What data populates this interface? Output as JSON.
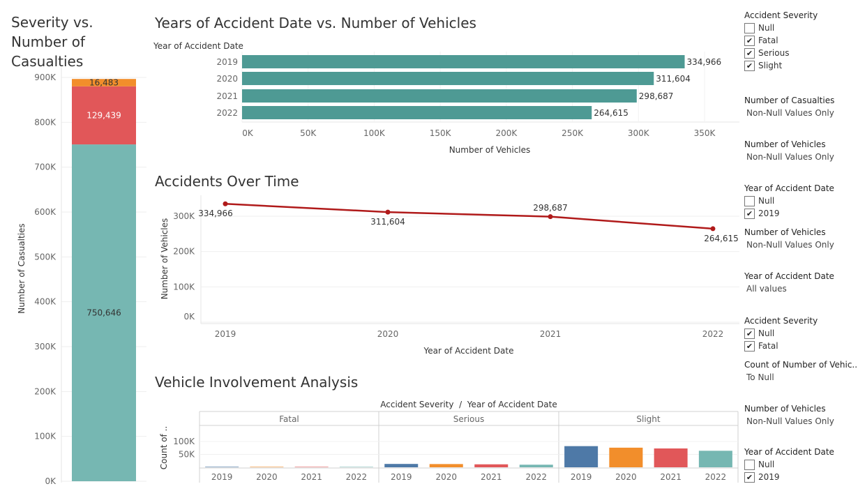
{
  "charts": {
    "severity": {
      "title": "Severity vs. Number of Casualties",
      "ylabel": "Number of Casualties"
    },
    "years": {
      "title": "Years of Accident Date vs. Number of Vehicles",
      "ylabel": "Year of Accident Date",
      "xlabel": "Number of Vehicles"
    },
    "time": {
      "title": "Accidents Over Time",
      "ylabel": "Number of Vehicles",
      "xlabel": "Year of Accident Date"
    },
    "involvement": {
      "title": "Vehicle Involvement Analysis",
      "header": "Accident Severity  /  Year of Accident Date",
      "ylabel": "Count of .."
    }
  },
  "chart_data": [
    {
      "type": "bar",
      "title": "Severity vs. Number of Casualties",
      "ylabel": "Number of Casualties",
      "stacked": true,
      "ylim": [
        0,
        920000
      ],
      "yticks": [
        0,
        100000,
        200000,
        300000,
        400000,
        500000,
        600000,
        700000,
        800000,
        900000
      ],
      "ytick_labels": [
        "0K",
        "100K",
        "200K",
        "300K",
        "400K",
        "500K",
        "600K",
        "700K",
        "800K",
        "900K"
      ],
      "series": [
        {
          "name": "Slight",
          "values": [
            750646
          ],
          "labels": [
            "750,646"
          ],
          "color": "#76b7b2",
          "label_color": "#333333"
        },
        {
          "name": "Serious",
          "values": [
            129439
          ],
          "labels": [
            "129,439"
          ],
          "color": "#e15759",
          "label_color": "#ffffff"
        },
        {
          "name": "Fatal",
          "values": [
            16483
          ],
          "labels": [
            "16,483"
          ],
          "color": "#f28e2b",
          "label_color": "#333333"
        }
      ]
    },
    {
      "type": "bar",
      "orientation": "horizontal",
      "title": "Years of Accident Date vs. Number of Vehicles",
      "xlabel": "Number of Vehicles",
      "ylabel": "Year of Accident Date",
      "categories": [
        "2019",
        "2020",
        "2021",
        "2022"
      ],
      "values": [
        334966,
        311604,
        298687,
        264615
      ],
      "labels": [
        "334,966",
        "311,604",
        "298,687",
        "264,615"
      ],
      "xlim": [
        0,
        375000
      ],
      "xticks": [
        0,
        50000,
        100000,
        150000,
        200000,
        250000,
        300000,
        350000
      ],
      "xtick_labels": [
        "0K",
        "50K",
        "100K",
        "150K",
        "200K",
        "250K",
        "300K",
        "350K"
      ],
      "color": "#4e9a94"
    },
    {
      "type": "line",
      "title": "Accidents Over Time",
      "xlabel": "Year of Accident Date",
      "ylabel": "Number of Vehicles",
      "x": [
        "2019",
        "2020",
        "2021",
        "2022"
      ],
      "values": [
        334966,
        311604,
        298687,
        264615
      ],
      "labels": [
        "334,966",
        "311,604",
        "298,687",
        "264,615"
      ],
      "ylim": [
        0,
        345000
      ],
      "yticks": [
        0,
        100000,
        200000,
        300000
      ],
      "ytick_labels": [
        "0K",
        "100K",
        "200K",
        "300K"
      ],
      "color": "#b01a1a"
    },
    {
      "type": "bar",
      "title": "Vehicle Involvement Analysis",
      "ylabel": "Count of ..",
      "header": "Accident Severity  /  Year of Accident Date",
      "panels": [
        "Fatal",
        "Serious",
        "Slight"
      ],
      "categories": [
        "2019",
        "2020",
        "2021",
        "2022"
      ],
      "values": [
        [
          1800,
          1700,
          1600,
          1500
        ],
        [
          13000,
          12500,
          11500,
          10000
        ],
        [
          82000,
          76000,
          73000,
          64000
        ]
      ],
      "colors": [
        "#4e79a7",
        "#f28e2b",
        "#e15759",
        "#76b7b2"
      ],
      "ylim": [
        0,
        120000
      ],
      "yticks": [
        50000,
        100000
      ],
      "ytick_labels": [
        "50K",
        "100K"
      ]
    }
  ],
  "filters": [
    {
      "title": "Accident Severity",
      "options": [
        {
          "label": "Null",
          "checked": false
        },
        {
          "label": "Fatal",
          "checked": true
        },
        {
          "label": "Serious",
          "checked": true
        },
        {
          "label": "Slight",
          "checked": true
        }
      ]
    },
    {
      "title": "Number of Casualties",
      "value": "Non-Null Values Only"
    },
    {
      "title": "Number of Vehicles",
      "value": "Non-Null Values Only"
    },
    {
      "title": "Year of Accident Date",
      "options": [
        {
          "label": "Null",
          "checked": false
        },
        {
          "label": "2019",
          "checked": true
        }
      ]
    },
    {
      "title": "Number of Vehicles",
      "value": "Non-Null Values Only"
    },
    {
      "title": "Year of Accident Date",
      "value": "All values"
    },
    {
      "title": "Accident Severity",
      "options": [
        {
          "label": "Null",
          "checked": true
        },
        {
          "label": "Fatal",
          "checked": true
        }
      ]
    },
    {
      "title": "Count of Number of Vehic..",
      "value": "To Null"
    },
    {
      "title": "Number of Vehicles",
      "value": "Non-Null Values Only"
    },
    {
      "title": "Year of Accident Date",
      "options": [
        {
          "label": "Null",
          "checked": false
        },
        {
          "label": "2019",
          "checked": true
        }
      ]
    }
  ]
}
